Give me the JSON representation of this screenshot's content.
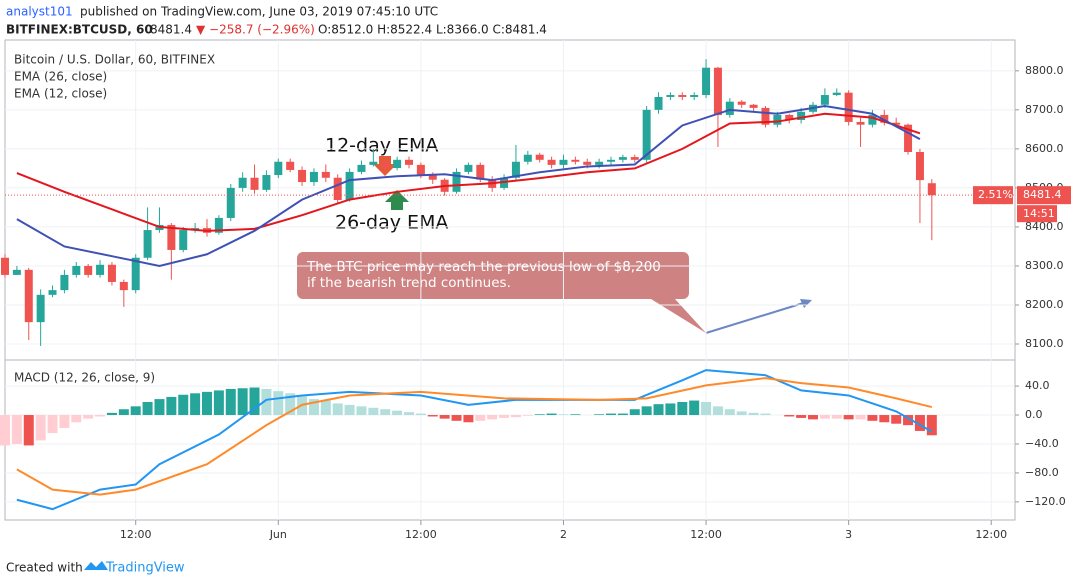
{
  "header": {
    "author": "analyst101",
    "published": "published on TradingView.com, June 03, 2019 07:45:10 UTC",
    "symbol": "BITFINEX:BTCUSD, 60",
    "price": "8481.4",
    "change": "▼ −258.7 (−2.96%)",
    "ohlc": "O:8512.0 H:8522.4 L:8366.0 C:8481.4"
  },
  "chart_data": [
    {
      "type": "candlestick",
      "title": "Bitcoin / U.S. Dollar, 60, BITFINEX",
      "up_color": "#26a69a",
      "down_color": "#ef5350",
      "x": [
        1,
        2,
        3,
        4,
        5,
        6,
        7,
        8,
        9,
        10,
        11,
        12,
        13,
        14,
        15,
        16,
        17,
        18,
        19,
        20,
        21,
        22,
        23,
        24,
        25,
        26,
        27,
        28,
        29,
        30,
        31,
        32,
        33,
        34,
        35,
        36,
        37,
        38,
        39,
        40,
        41,
        42,
        43,
        44,
        45,
        46,
        47,
        48,
        49,
        50,
        51,
        52,
        53,
        54,
        55,
        56,
        57,
        58,
        59,
        60,
        61,
        62,
        63,
        64,
        65,
        66,
        67,
        68,
        69,
        70,
        71,
        72,
        73,
        74,
        75,
        76,
        77,
        78,
        79
      ],
      "open": [
        8321,
        8277,
        8290,
        8156,
        8226,
        8238,
        8277,
        8300,
        8277,
        8303,
        8259,
        8238,
        8321,
        8392,
        8405,
        8341,
        8392,
        8397,
        8385,
        8423,
        8500,
        8526,
        8495,
        8533,
        8567,
        8546,
        8515,
        8541,
        8526,
        8469,
        8541,
        8559,
        8567,
        8551,
        8572,
        8559,
        8533,
        8521,
        8490,
        8541,
        8559,
        8521,
        8500,
        8526,
        8567,
        8585,
        8572,
        8559,
        8572,
        8567,
        8559,
        8567,
        8572,
        8579,
        8572,
        8700,
        8733,
        8738,
        8733,
        8738,
        8808,
        8687,
        8721,
        8713,
        8705,
        8662,
        8687,
        8674,
        8695,
        8713,
        8738,
        8744,
        8669,
        8662,
        8687,
        8667,
        8662,
        8592,
        8512
      ],
      "high": [
        8330,
        8300,
        8295,
        8240,
        8250,
        8290,
        8310,
        8305,
        8315,
        8310,
        8265,
        8330,
        8450,
        8450,
        8410,
        8400,
        8410,
        8420,
        8430,
        8510,
        8540,
        8560,
        8545,
        8575,
        8575,
        8555,
        8550,
        8560,
        8535,
        8550,
        8570,
        8600,
        8575,
        8580,
        8580,
        8565,
        8540,
        8525,
        8550,
        8565,
        8565,
        8530,
        8535,
        8610,
        8595,
        8590,
        8580,
        8585,
        8580,
        8575,
        8575,
        8580,
        8585,
        8585,
        8710,
        8745,
        8745,
        8745,
        8745,
        8830,
        8810,
        8730,
        8725,
        8715,
        8710,
        8695,
        8690,
        8705,
        8720,
        8755,
        8755,
        8750,
        8680,
        8700,
        8700,
        8680,
        8665,
        8600,
        8522.4
      ],
      "low": [
        8270,
        8280,
        8110,
        8095,
        8220,
        8230,
        8270,
        8270,
        8270,
        8250,
        8195,
        8230,
        8315,
        8385,
        8265,
        8335,
        8385,
        8375,
        8380,
        8415,
        8490,
        8485,
        8490,
        8525,
        8540,
        8505,
        8505,
        8515,
        8460,
        8465,
        8535,
        8555,
        8545,
        8545,
        8550,
        8525,
        8510,
        8480,
        8485,
        8535,
        8515,
        8490,
        8495,
        8520,
        8560,
        8565,
        8550,
        8550,
        8560,
        8550,
        8550,
        8560,
        8565,
        8565,
        8565,
        8690,
        8725,
        8725,
        8725,
        8730,
        8605,
        8680,
        8705,
        8695,
        8655,
        8655,
        8665,
        8665,
        8690,
        8705,
        8735,
        8660,
        8605,
        8655,
        8660,
        8655,
        8585,
        8410,
        8366
      ],
      "close": [
        8277,
        8290,
        8156,
        8226,
        8238,
        8277,
        8300,
        8277,
        8303,
        8259,
        8238,
        8321,
        8392,
        8405,
        8341,
        8392,
        8397,
        8385,
        8423,
        8500,
        8526,
        8495,
        8533,
        8567,
        8546,
        8515,
        8541,
        8526,
        8469,
        8541,
        8559,
        8567,
        8551,
        8572,
        8559,
        8533,
        8521,
        8490,
        8541,
        8559,
        8521,
        8500,
        8526,
        8567,
        8585,
        8572,
        8559,
        8572,
        8567,
        8559,
        8567,
        8572,
        8579,
        8572,
        8700,
        8733,
        8738,
        8733,
        8738,
        8808,
        8687,
        8721,
        8713,
        8705,
        8662,
        8687,
        8674,
        8695,
        8713,
        8738,
        8744,
        8669,
        8662,
        8687,
        8667,
        8662,
        8592,
        8520,
        8481.4
      ],
      "lines": [
        {
          "name": "EMA (26, close)",
          "color": "#e3171d",
          "x": [
            2,
            6,
            10,
            14,
            18,
            22,
            26,
            30,
            34,
            38,
            42,
            46,
            50,
            54,
            58,
            62,
            66,
            70,
            74,
            78
          ],
          "values": [
            8538,
            8490,
            8445,
            8400,
            8390,
            8395,
            8430,
            8470,
            8490,
            8505,
            8512,
            8525,
            8540,
            8550,
            8600,
            8665,
            8670,
            8690,
            8680,
            8640
          ]
        },
        {
          "name": "EMA (12, close)",
          "color": "#3f51b5",
          "x": [
            2,
            6,
            10,
            14,
            18,
            22,
            26,
            30,
            34,
            38,
            42,
            46,
            50,
            54,
            58,
            62,
            66,
            70,
            74,
            78
          ],
          "values": [
            8420,
            8350,
            8325,
            8300,
            8330,
            8390,
            8470,
            8520,
            8530,
            8535,
            8520,
            8540,
            8555,
            8560,
            8660,
            8700,
            8690,
            8710,
            8690,
            8625
          ]
        }
      ],
      "xlim": [
        1,
        86
      ],
      "xticks": [
        {
          "value": 12,
          "label": "12:00"
        },
        {
          "value": 24,
          "label": "Jun"
        },
        {
          "value": 36,
          "label": "12:00"
        },
        {
          "value": 48,
          "label": "2"
        },
        {
          "value": 60,
          "label": "12:00"
        },
        {
          "value": 72,
          "label": "3"
        },
        {
          "value": 84,
          "label": "12:00"
        }
      ],
      "ylim": [
        8059,
        8879
      ],
      "yticks": [
        {
          "value": 8100,
          "label": "8100.0"
        },
        {
          "value": 8200,
          "label": "8200.0"
        },
        {
          "value": 8300,
          "label": "8300.0"
        },
        {
          "value": 8400,
          "label": "8400.0"
        },
        {
          "value": 8500,
          "label": "8500.0"
        },
        {
          "value": 8600,
          "label": "8600.0"
        },
        {
          "value": 8700,
          "label": "8700.0"
        },
        {
          "value": 8800,
          "label": "8800.0"
        }
      ],
      "grid": true,
      "last_price": {
        "value": 8481.4,
        "label": "8481.4"
      },
      "countdown": "14:51",
      "badge": "2.51%",
      "annotations": [
        "12-day EMA",
        "26-day EMA"
      ],
      "callout": [
        "The BTC price may reach the previous low of $8,200",
        "if the bearish trend continues."
      ]
    },
    {
      "type": "macd",
      "title": "MACD (12, 26, close, 9)",
      "colors": [
        "#26a69a",
        "#b2dfdb",
        "#ffcdd2",
        "#ef5350"
      ],
      "x": [
        1,
        2,
        3,
        4,
        5,
        6,
        7,
        8,
        9,
        10,
        11,
        12,
        13,
        14,
        15,
        16,
        17,
        18,
        19,
        20,
        21,
        22,
        23,
        24,
        25,
        26,
        27,
        28,
        29,
        30,
        31,
        32,
        33,
        34,
        35,
        36,
        37,
        38,
        39,
        40,
        41,
        42,
        43,
        44,
        45,
        46,
        47,
        48,
        49,
        50,
        51,
        52,
        53,
        54,
        55,
        56,
        57,
        58,
        59,
        60,
        61,
        62,
        63,
        64,
        65,
        66,
        67,
        68,
        69,
        70,
        71,
        72,
        73,
        74,
        75,
        76,
        77,
        78,
        79
      ],
      "values": [
        -42,
        -40,
        -42,
        -35,
        -25,
        -18,
        -10,
        -5,
        -2,
        3,
        8,
        12,
        18,
        22,
        25,
        28,
        30,
        32,
        34,
        36,
        37,
        38,
        36,
        33,
        30,
        26,
        22,
        20,
        16,
        14,
        12,
        10,
        8,
        6,
        4,
        2,
        -2,
        -5,
        -8,
        -10,
        -8,
        -6,
        -4,
        -3,
        -1,
        1,
        2,
        1,
        1,
        0,
        1,
        2,
        2,
        8,
        12,
        15,
        16,
        18,
        20,
        18,
        12,
        8,
        5,
        3,
        2,
        0,
        -2,
        -4,
        -6,
        -5,
        -5,
        -6,
        -6,
        -8,
        -10,
        -12,
        -14,
        -22,
        -28
      ],
      "series": [
        {
          "color": "#2196f3",
          "x": [
            2,
            5,
            9,
            12,
            14,
            19,
            23,
            26,
            30,
            36,
            40,
            44,
            48,
            54,
            58,
            60,
            65,
            68,
            72,
            76,
            79
          ],
          "values": [
            -117,
            -130,
            -103,
            -96,
            -68,
            -27,
            21,
            27,
            32,
            27,
            14,
            21,
            21,
            21,
            48,
            62,
            55,
            34,
            27,
            5,
            -23
          ]
        },
        {
          "color": "#ff8a2a",
          "x": [
            2,
            5,
            9,
            12,
            18,
            23,
            26,
            30,
            36,
            43,
            51,
            55,
            60,
            65,
            68,
            72,
            76,
            79
          ],
          "values": [
            -75,
            -103,
            -110,
            -103,
            -68,
            -14,
            14,
            27,
            32,
            23,
            21,
            23,
            41,
            51,
            44,
            38,
            23,
            11
          ]
        }
      ],
      "xlim": [
        1,
        86
      ],
      "ylim": [
        -145,
        76
      ],
      "yticks": [
        {
          "value": 40,
          "label": "40.0"
        },
        {
          "value": 0,
          "label": "0.0"
        },
        {
          "value": -40,
          "label": "−40.0"
        },
        {
          "value": -80,
          "label": "−80.0"
        },
        {
          "value": -120,
          "label": "−120.0"
        }
      ],
      "grid": true
    }
  ],
  "footer": {
    "created": "Created with",
    "brand": "TradingView"
  }
}
